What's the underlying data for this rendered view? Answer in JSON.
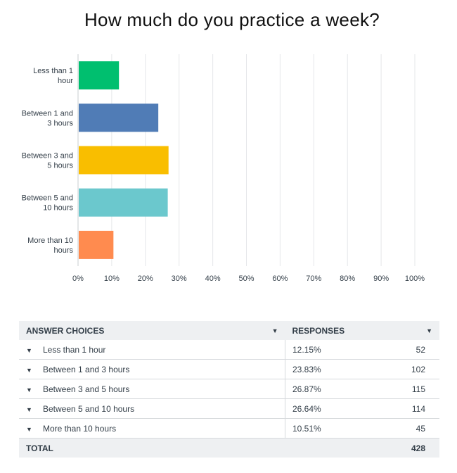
{
  "chart_data": {
    "type": "bar",
    "orientation": "horizontal",
    "title": "How much do you practice a week?",
    "categories": [
      [
        "Less than 1",
        "hour"
      ],
      [
        "Between 1 and",
        "3 hours"
      ],
      [
        "Between 3 and",
        "5 hours"
      ],
      [
        "Between 5 and",
        "10 hours"
      ],
      [
        "More than 10",
        "hours"
      ]
    ],
    "values": [
      12.15,
      23.83,
      26.87,
      26.64,
      10.51
    ],
    "colors": [
      "#00bf6f",
      "#507cb6",
      "#f9be00",
      "#6bc8cd",
      "#ff8b4f"
    ],
    "xlim": [
      0,
      100
    ],
    "ticks": [
      "0%",
      "10%",
      "20%",
      "30%",
      "40%",
      "50%",
      "60%",
      "70%",
      "80%",
      "90%",
      "100%"
    ],
    "grid": true
  },
  "table": {
    "header_choices": "ANSWER CHOICES",
    "header_responses": "RESPONSES",
    "rows": [
      {
        "choice": "Less than 1 hour",
        "percent": "12.15%",
        "count": "52"
      },
      {
        "choice": "Between 1 and 3 hours",
        "percent": "23.83%",
        "count": "102"
      },
      {
        "choice": "Between 3 and 5 hours",
        "percent": "26.87%",
        "count": "115"
      },
      {
        "choice": "Between 5 and 10 hours",
        "percent": "26.64%",
        "count": "114"
      },
      {
        "choice": "More than 10 hours",
        "percent": "10.51%",
        "count": "45"
      }
    ],
    "total_label": "TOTAL",
    "total_count": "428",
    "sort_icon": "caret-down-icon",
    "row_icon": "triangle-down-icon"
  }
}
